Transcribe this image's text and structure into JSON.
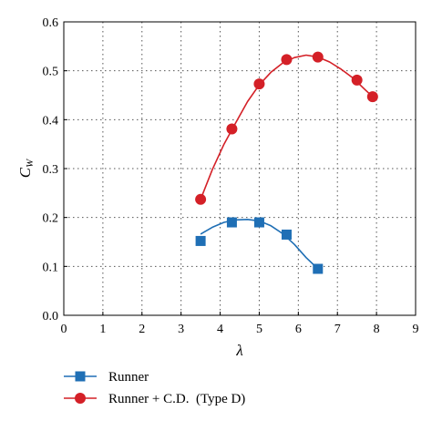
{
  "chart_data": {
    "type": "line",
    "title": "",
    "xlabel": "λ",
    "ylabel_main": "C",
    "ylabel_sub": "W",
    "xlim": [
      0,
      9
    ],
    "ylim": [
      0.0,
      0.6
    ],
    "x_ticks": [
      "0",
      "1",
      "2",
      "3",
      "4",
      "5",
      "6",
      "7",
      "8",
      "9"
    ],
    "y_ticks": [
      "0.0",
      "0.1",
      "0.2",
      "0.3",
      "0.4",
      "0.5",
      "0.6"
    ],
    "grid": true,
    "legend_position": "bottom-left, below plot",
    "series": [
      {
        "name": "Runner",
        "marker": "square",
        "color": "#1f6fb5",
        "x": [
          3.5,
          4.3,
          5.0,
          5.7,
          6.5
        ],
        "y": [
          0.152,
          0.19,
          0.19,
          0.165,
          0.095
        ],
        "curve_x": [
          3.5,
          3.8,
          4.1,
          4.4,
          4.7,
          5.0,
          5.3,
          5.6,
          5.9,
          6.2,
          6.5
        ],
        "curve_y": [
          0.166,
          0.18,
          0.19,
          0.195,
          0.196,
          0.193,
          0.183,
          0.167,
          0.145,
          0.118,
          0.095
        ]
      },
      {
        "name": "Runner + C.D.  (Type D)",
        "marker": "circle",
        "color": "#d42027",
        "x": [
          3.5,
          4.3,
          5.0,
          5.7,
          6.5,
          7.5,
          7.9
        ],
        "y": [
          0.237,
          0.381,
          0.473,
          0.523,
          0.528,
          0.481,
          0.447
        ],
        "curve_x": [
          3.5,
          3.8,
          4.1,
          4.4,
          4.7,
          5.0,
          5.3,
          5.6,
          5.9,
          6.2,
          6.5,
          6.8,
          7.1,
          7.4,
          7.7,
          7.9
        ],
        "curve_y": [
          0.237,
          0.298,
          0.35,
          0.394,
          0.437,
          0.471,
          0.497,
          0.516,
          0.527,
          0.532,
          0.528,
          0.518,
          0.503,
          0.485,
          0.462,
          0.447
        ]
      }
    ]
  }
}
